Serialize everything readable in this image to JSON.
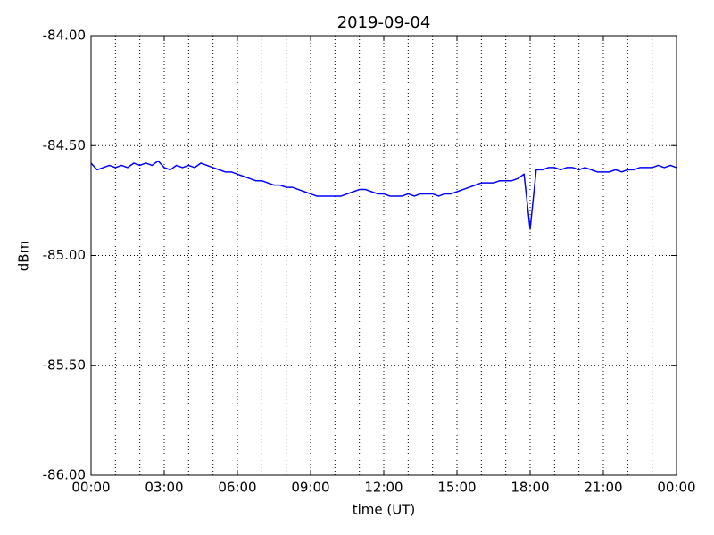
{
  "chart_data": {
    "type": "line",
    "title": "2019-09-04",
    "xlabel": "time (UT)",
    "ylabel": "dBm",
    "x": [
      0,
      0.25,
      0.5,
      0.75,
      1,
      1.25,
      1.5,
      1.75,
      2,
      2.25,
      2.5,
      2.75,
      3,
      3.25,
      3.5,
      3.75,
      4,
      4.25,
      4.5,
      4.75,
      5,
      5.25,
      5.5,
      5.75,
      6,
      6.25,
      6.5,
      6.75,
      7,
      7.25,
      7.5,
      7.75,
      8,
      8.25,
      8.5,
      8.75,
      9,
      9.25,
      9.5,
      9.75,
      10,
      10.25,
      10.5,
      10.75,
      11,
      11.25,
      11.5,
      11.75,
      12,
      12.25,
      12.5,
      12.75,
      13,
      13.25,
      13.5,
      13.75,
      14,
      14.25,
      14.5,
      14.75,
      15,
      15.25,
      15.5,
      15.75,
      16,
      16.25,
      16.5,
      16.75,
      17,
      17.25,
      17.5,
      17.75,
      18,
      18.25,
      18.5,
      18.75,
      19,
      19.25,
      19.5,
      19.75,
      20,
      20.25,
      20.5,
      20.75,
      21,
      21.25,
      21.5,
      21.75,
      22,
      22.25,
      22.5,
      22.75,
      23,
      23.25,
      23.5,
      23.75,
      24
    ],
    "series": [
      {
        "color": "#0000ff",
        "values": [
          -84.58,
          -84.61,
          -84.6,
          -84.59,
          -84.6,
          -84.59,
          -84.6,
          -84.58,
          -84.59,
          -84.58,
          -84.59,
          -84.57,
          -84.6,
          -84.61,
          -84.59,
          -84.6,
          -84.59,
          -84.6,
          -84.58,
          -84.59,
          -84.6,
          -84.61,
          -84.62,
          -84.62,
          -84.63,
          -84.64,
          -84.65,
          -84.66,
          -84.66,
          -84.67,
          -84.68,
          -84.68,
          -84.69,
          -84.69,
          -84.7,
          -84.71,
          -84.72,
          -84.73,
          -84.73,
          -84.73,
          -84.73,
          -84.73,
          -84.72,
          -84.71,
          -84.7,
          -84.7,
          -84.71,
          -84.72,
          -84.72,
          -84.73,
          -84.73,
          -84.73,
          -84.72,
          -84.73,
          -84.72,
          -84.72,
          -84.72,
          -84.73,
          -84.72,
          -84.72,
          -84.71,
          -84.7,
          -84.69,
          -84.68,
          -84.67,
          -84.67,
          -84.67,
          -84.66,
          -84.66,
          -84.66,
          -84.65,
          -84.63,
          -84.88,
          -84.61,
          -84.61,
          -84.6,
          -84.6,
          -84.61,
          -84.6,
          -84.6,
          -84.61,
          -84.6,
          -84.61,
          -84.62,
          -84.62,
          -84.62,
          -84.61,
          -84.62,
          -84.61,
          -84.61,
          -84.6,
          -84.6,
          -84.6,
          -84.59,
          -84.6,
          -84.59,
          -84.6
        ]
      }
    ],
    "xlim": [
      0,
      24
    ],
    "xticks": [
      {
        "value": 0,
        "label": "00:00"
      },
      {
        "value": 3,
        "label": "03:00"
      },
      {
        "value": 6,
        "label": "06:00"
      },
      {
        "value": 9,
        "label": "09:00"
      },
      {
        "value": 12,
        "label": "12:00"
      },
      {
        "value": 15,
        "label": "15:00"
      },
      {
        "value": 18,
        "label": "18:00"
      },
      {
        "value": 21,
        "label": "21:00"
      },
      {
        "value": 24,
        "label": "00:00"
      }
    ],
    "xminorticks": [
      1,
      2,
      4,
      5,
      7,
      8,
      10,
      11,
      13,
      14,
      16,
      17,
      19,
      20,
      22,
      23
    ],
    "ylim": [
      -86,
      -84
    ],
    "yticks": [
      {
        "value": -86,
        "label": "-86.00"
      },
      {
        "value": -85.5,
        "label": "-85.50"
      },
      {
        "value": -85,
        "label": "-85.00"
      },
      {
        "value": -84.5,
        "label": "-84.50"
      },
      {
        "value": -84,
        "label": "-84.00"
      }
    ],
    "grid": true
  }
}
